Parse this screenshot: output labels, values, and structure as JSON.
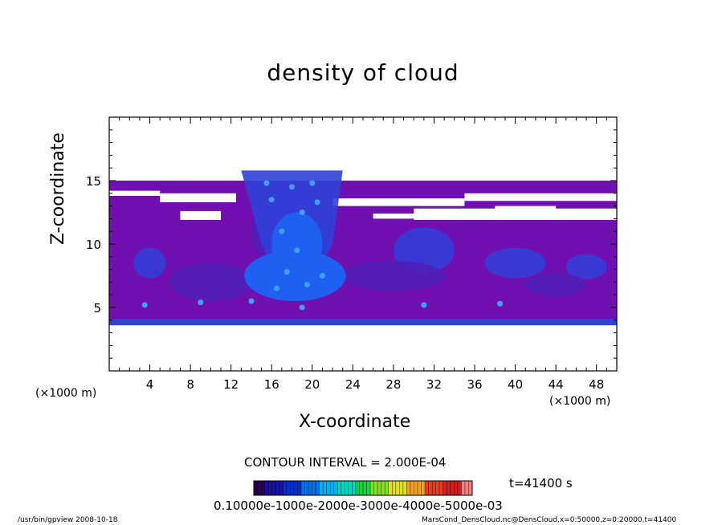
{
  "chart_data": {
    "type": "heatmap",
    "title": "density of cloud",
    "xlabel": "X-coordinate",
    "ylabel": "Z-coordinate",
    "x_unit_left": "(×1000 m)",
    "x_unit_right": "(×1000 m)",
    "xlim": [
      0,
      50
    ],
    "ylim": [
      0,
      20
    ],
    "x_ticks": [
      "4",
      "8",
      "12",
      "16",
      "20",
      "24",
      "28",
      "32",
      "36",
      "40",
      "44",
      "48"
    ],
    "y_ticks": [
      "5",
      "10",
      "15"
    ],
    "contour_interval": "CONTOUR INTERVAL = 2.000E-04",
    "time_label": "t=41400 s",
    "colorbar_labels": "0.10000e-1000e-2000e-3000e-4000e-5000e-03",
    "colorbar_colors": [
      "#2a0050",
      "#1a10a0",
      "#0030d0",
      "#0070e8",
      "#00b0f0",
      "#00d8c0",
      "#20d040",
      "#80e020",
      "#e0e020",
      "#f0a020",
      "#e04020",
      "#d02020",
      "#f08080"
    ],
    "region_colors": {
      "background": "#7010b0",
      "mid": "#5020b8",
      "deep": "#3040d8",
      "core": "#2060f0",
      "bright": "#40a0ff"
    },
    "footer_left": "/usr/bin/gpview   2008-10-18",
    "footer_right": "MarsCond_DensCloud.nc@DensCloud,x=0:50000,z=0:20000,t=41400"
  }
}
